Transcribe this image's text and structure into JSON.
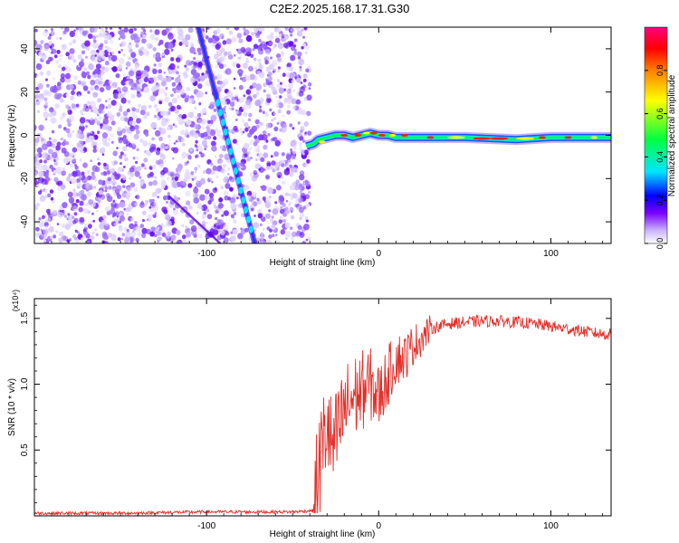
{
  "title": "C2E2.2025.168.17.31.G30",
  "chart_data": [
    {
      "type": "heatmap",
      "xlabel": "Height of straight line (km)",
      "ylabel": "Frequency (Hz)",
      "xlim": [
        -200,
        135
      ],
      "ylim": [
        -50,
        50
      ],
      "xticks": [
        -100,
        0,
        100
      ],
      "xtick_labels": [
        "-100",
        "0",
        "100"
      ],
      "yticks": [
        -40,
        -20,
        0,
        20,
        40
      ],
      "ytick_labels": [
        "-40",
        "-20",
        "0",
        "20",
        "40"
      ],
      "colorbar": {
        "label": "Normalized spectral amplitude",
        "range": [
          0,
          1
        ],
        "ticks": [
          0,
          0.2,
          0.4,
          0.6,
          0.8
        ],
        "tick_labels": [
          "0.0",
          "0.2",
          "0.4",
          "0.6",
          "0.8"
        ],
        "colors": [
          "#ffffff",
          "#c9b3ff",
          "#7a00ff",
          "#0000ff",
          "#00e5ff",
          "#00ff40",
          "#ffff00",
          "#ff8000",
          "#ff0000",
          "#ff0080"
        ]
      },
      "noise_region_x": [
        -200,
        -40
      ],
      "diagonal_feature": {
        "x": [
          -105,
          -72
        ],
        "y": [
          50,
          -50
        ]
      },
      "faint_diagonal": {
        "x": [
          -122,
          -92
        ],
        "y": [
          -28,
          -50
        ]
      },
      "narrow_band": {
        "x": [
          -42,
          -38,
          -35,
          -30,
          -25,
          -20,
          -15,
          -10,
          -5,
          0,
          5,
          10,
          20,
          30,
          50,
          80,
          100,
          120,
          135
        ],
        "y": [
          -5,
          -4,
          -2,
          -1,
          0,
          0,
          -1,
          0,
          1,
          0,
          0,
          -1,
          -1,
          -1,
          -1,
          -2,
          -1,
          -1,
          -1
        ]
      }
    },
    {
      "type": "line",
      "xlabel": "Height of straight line (km)",
      "ylabel": "SNR (10 * v/v)",
      "y_multiplier": "(x10⁴)",
      "xlim": [
        -200,
        135
      ],
      "ylim": [
        0,
        1.65
      ],
      "xticks": [
        -100,
        0,
        100
      ],
      "xtick_labels": [
        "-100",
        "0",
        "100"
      ],
      "yticks": [
        0.5,
        1.0,
        1.5
      ],
      "ytick_labels": [
        "0.5",
        "1.0",
        "1.5"
      ],
      "color": "#e3302a",
      "series": [
        {
          "x": [
            -200,
            -150,
            -100,
            -50,
            -38,
            -33,
            -30,
            -27,
            -24,
            -20,
            -15,
            -10,
            -5,
            0,
            5,
            10,
            15,
            20,
            25,
            30,
            40,
            50,
            60,
            70,
            80,
            90,
            100,
            110,
            120,
            130,
            135
          ],
          "y": [
            0.02,
            0.02,
            0.03,
            0.03,
            0.04,
            0.5,
            0.7,
            0.5,
            0.6,
            0.8,
            0.9,
            0.95,
            1.0,
            0.9,
            1.05,
            1.2,
            1.2,
            1.3,
            1.35,
            1.42,
            1.46,
            1.47,
            1.48,
            1.48,
            1.47,
            1.46,
            1.44,
            1.42,
            1.4,
            1.38,
            1.38
          ]
        }
      ]
    }
  ]
}
